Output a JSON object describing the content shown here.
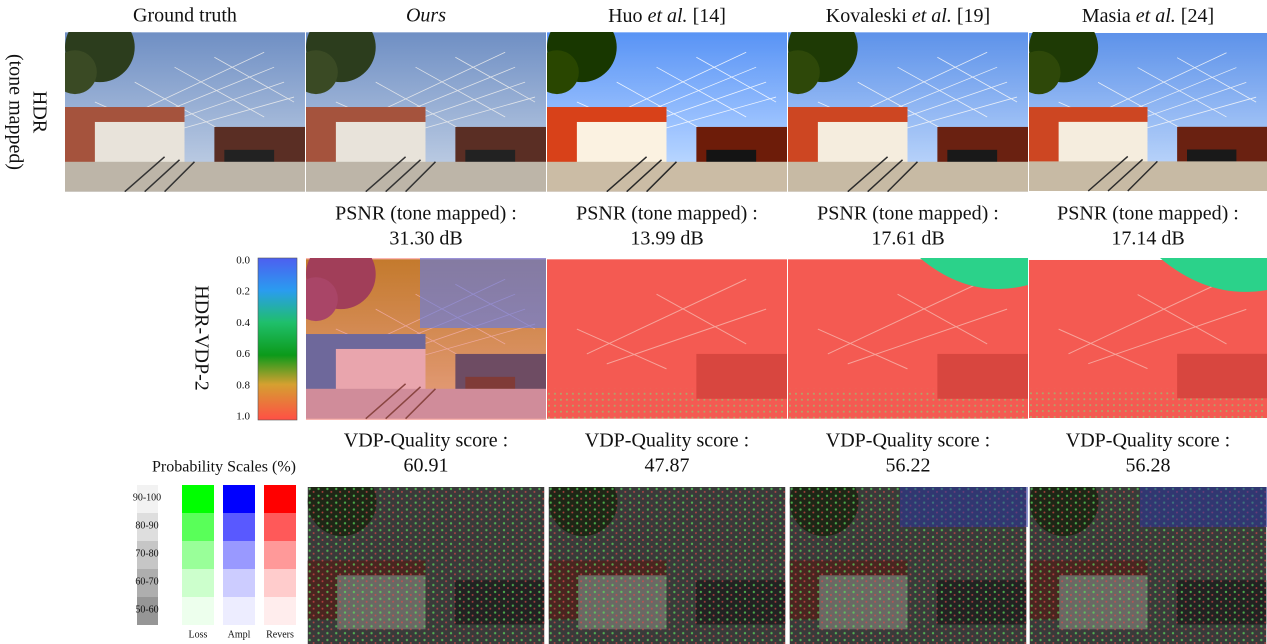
{
  "columns": [
    {
      "label": "Ground truth"
    },
    {
      "label": "Ours"
    },
    {
      "author": "Huo",
      "etal": "et al.",
      "ref": "[14]"
    },
    {
      "author": "Kovaleski",
      "etal": "et al.",
      "ref": "[19]"
    },
    {
      "author": "Masia",
      "etal": "et al.",
      "ref": "[24]"
    }
  ],
  "row_labels": {
    "hdr": [
      "HDR",
      "(tone mapped)"
    ],
    "vdp": "HDR-VDP-2"
  },
  "psnr": {
    "label": "PSNR (tone mapped) :",
    "values": [
      "31.30 dB",
      "13.99 dB",
      "17.61 dB",
      "17.14 dB"
    ]
  },
  "colorbar": {
    "ticks": [
      "0.0",
      "0.2",
      "0.4",
      "0.6",
      "0.8",
      "1.0"
    ]
  },
  "quality": {
    "label": "VDP-Quality score :",
    "values": [
      "60.91",
      "47.87",
      "56.22",
      "56.28"
    ]
  },
  "probability": {
    "title": "Probability Scales (%)",
    "bins": [
      "90-100",
      "80-90",
      "70-80",
      "60-70",
      "50-60"
    ],
    "columns": [
      "Loss",
      "Ampl",
      "Revers"
    ]
  }
}
